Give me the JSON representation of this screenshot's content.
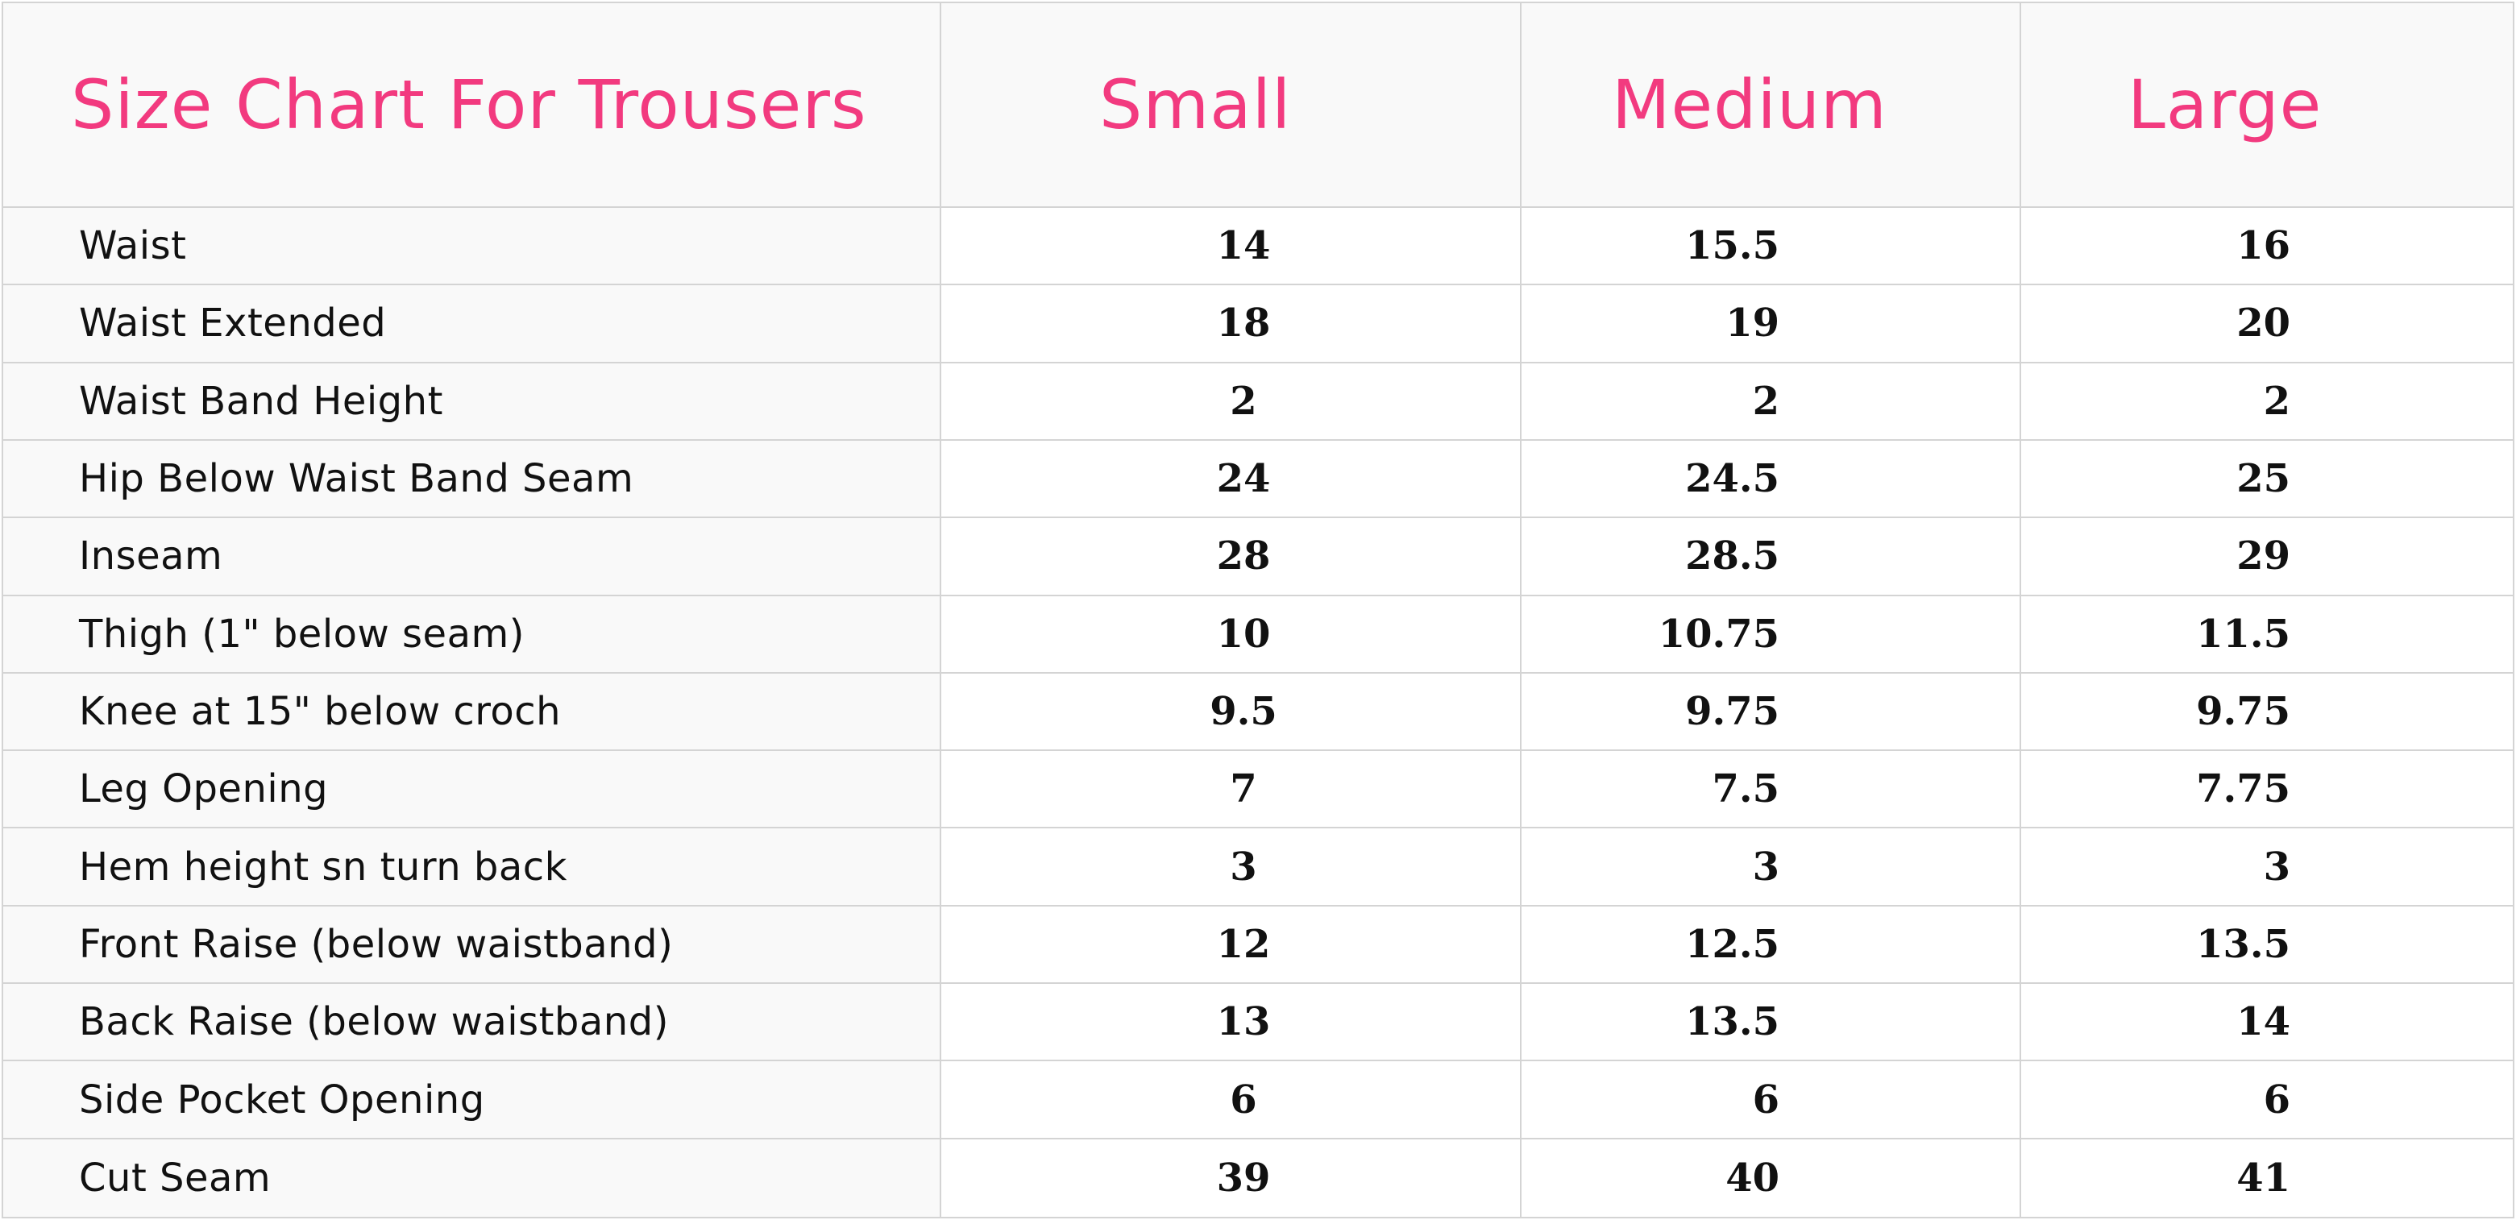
{
  "table": {
    "title": "Size Chart For Trousers",
    "columns": [
      "Small",
      "Medium",
      "Large"
    ],
    "rows": [
      {
        "label": "Waist",
        "values": [
          "14",
          "15.5",
          "16"
        ]
      },
      {
        "label": "Waist Extended",
        "values": [
          "18",
          "19",
          "20"
        ]
      },
      {
        "label": "Waist Band Height",
        "values": [
          "2",
          "2",
          "2"
        ]
      },
      {
        "label": "Hip Below Waist Band Seam",
        "values": [
          "24",
          "24.5",
          "25"
        ]
      },
      {
        "label": "Inseam",
        "values": [
          "28",
          "28.5",
          "29"
        ]
      },
      {
        "label": "Thigh (1\" below seam)",
        "values": [
          "10",
          "10.75",
          "11.5"
        ]
      },
      {
        "label": "Knee at 15\" below croch",
        "values": [
          "9.5",
          "9.75",
          "9.75"
        ]
      },
      {
        "label": "Leg Opening",
        "values": [
          "7",
          "7.5",
          "7.75"
        ]
      },
      {
        "label": "Hem height sn turn back",
        "values": [
          "3",
          "3",
          "3"
        ]
      },
      {
        "label": "Front Raise (below waistband)",
        "values": [
          "12",
          "12.5",
          "13.5"
        ]
      },
      {
        "label": "Back Raise (below waistband)",
        "values": [
          "13",
          "13.5",
          "14"
        ]
      },
      {
        "label": "Side Pocket Opening",
        "values": [
          "6",
          "6",
          "6"
        ]
      },
      {
        "label": "Cut Seam",
        "values": [
          "39",
          "40",
          "41"
        ]
      }
    ]
  },
  "colors": {
    "header_text": "#f23a7f",
    "body_text": "#111111",
    "grid_lines": "#d4d4d4",
    "label_background": "#f9f9f9"
  }
}
